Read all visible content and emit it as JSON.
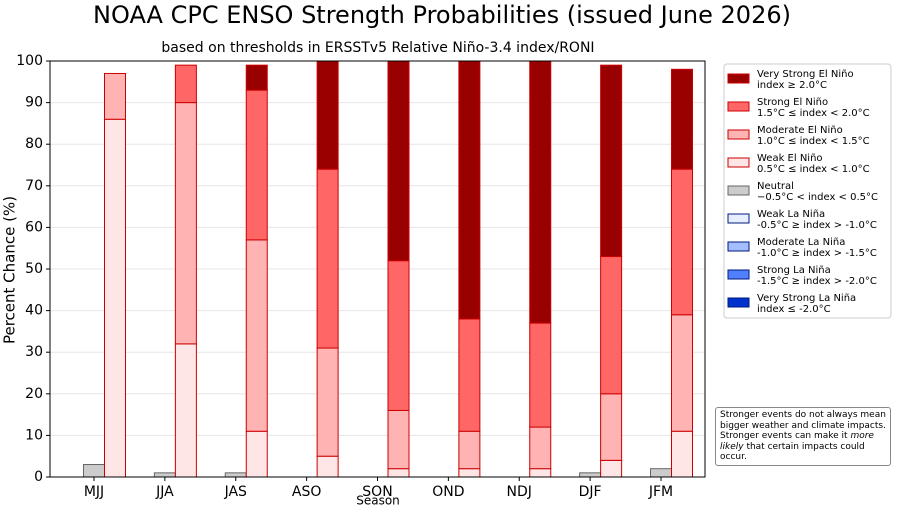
{
  "chart_data": {
    "type": "stacked-bar",
    "title": "NOAA CPC ENSO Strength Probabilities (issued June 2026)",
    "subtitle": "based on thresholds in ERSSTv5 Relative Niño-3.4 index/RONI",
    "y_label": "Percent Chance (%)",
    "x_label": "Season",
    "categories": [
      "MJJ",
      "JJA",
      "JAS",
      "ASO",
      "SON",
      "OND",
      "NDJ",
      "DJF",
      "JFM"
    ],
    "ylim": [
      0,
      100
    ],
    "yticks": [
      0,
      10,
      20,
      30,
      40,
      50,
      60,
      70,
      80,
      90,
      100
    ],
    "grid": true,
    "series": [
      {
        "name": "Very Strong El Niño",
        "range": "index ≥ 2.0°C",
        "color": "#990000",
        "edgecolor": "#cc0000",
        "values": [
          0,
          0,
          6,
          26,
          48,
          62,
          63,
          46,
          24
        ]
      },
      {
        "name": "Strong El Niño",
        "range": "1.5°C ≤ index < 2.0°C",
        "color": "#ff6666",
        "edgecolor": "#cc0000",
        "values": [
          0,
          9,
          36,
          43,
          36,
          27,
          25,
          33,
          35
        ]
      },
      {
        "name": "Moderate El Niño",
        "range": "1.0°C ≤ index < 1.5°C",
        "color": "#ffb3b3",
        "edgecolor": "#cc0000",
        "values": [
          11,
          58,
          46,
          26,
          14,
          9,
          10,
          16,
          28
        ]
      },
      {
        "name": "Weak El Niño",
        "range": "0.5°C ≤ index < 1.0°C",
        "color": "#ffe6e6",
        "edgecolor": "#cc0000",
        "values": [
          86,
          32,
          11,
          5,
          2,
          2,
          2,
          4,
          11
        ]
      },
      {
        "name": "Neutral",
        "range": "−0.5°C < index < 0.5°C",
        "color": "#cccccc",
        "edgecolor": "#666666",
        "values": [
          3,
          1,
          1,
          0,
          0,
          0,
          0,
          1,
          2
        ]
      },
      {
        "name": "Weak La Niña",
        "range": "-0.5°C ≥ index > -1.0°C",
        "color": "#e6eeff",
        "edgecolor": "#001a80",
        "values": [
          0,
          0,
          0,
          0,
          0,
          0,
          0,
          0,
          0
        ]
      },
      {
        "name": "Moderate La Niña",
        "range": "-1.0°C ≥ index > -1.5°C",
        "color": "#a3bfff",
        "edgecolor": "#001a80",
        "values": [
          0,
          0,
          0,
          0,
          0,
          0,
          0,
          0,
          0
        ]
      },
      {
        "name": "Strong La Niña",
        "range": "-1.5°C ≥ index > -2.0°C",
        "color": "#5080ff",
        "edgecolor": "#001a80",
        "values": [
          0,
          0,
          0,
          0,
          0,
          0,
          0,
          0,
          0
        ]
      },
      {
        "name": "Very Strong La Niña",
        "range": "index ≤ -2.0°C",
        "color": "#0033cc",
        "edgecolor": "#001a80",
        "values": [
          0,
          0,
          0,
          0,
          0,
          0,
          0,
          0,
          0
        ]
      }
    ],
    "note": [
      "Stronger events do not always mean bigger weather and climate impacts. Stronger events can make it ",
      "more likely",
      " that certain impacts could occur."
    ]
  }
}
